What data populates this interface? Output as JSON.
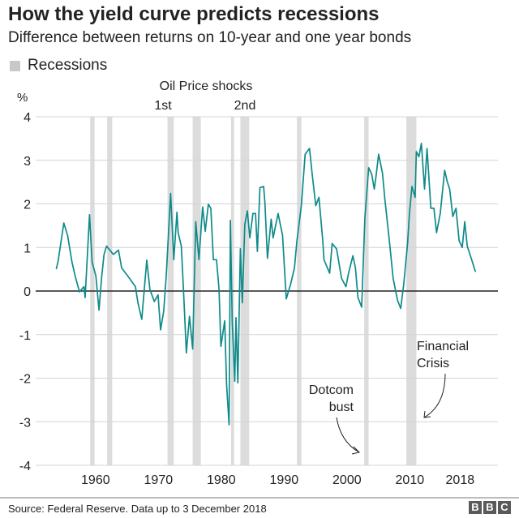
{
  "title": "How the yield curve predicts recessions",
  "subtitle": "Difference between returns on 10-year and one year bonds",
  "legend": {
    "label": "Recessions",
    "color": "#cccccc"
  },
  "source": "Source: Federal Reserve. Data up to 3 December 2018",
  "logo": [
    "B",
    "B",
    "C"
  ],
  "chart_data": {
    "type": "line",
    "title": "How the yield curve predicts recessions",
    "ylabel": "%",
    "ylim": [
      -4,
      4
    ],
    "yticks": [
      4,
      3,
      2,
      1,
      0,
      -1,
      -2,
      -3,
      -4
    ],
    "xticks": [
      1960,
      1970,
      1980,
      1990,
      2000,
      2010,
      2018
    ],
    "grid": "horizontal",
    "line_color": "#0f8a8a",
    "recession_color": "#dcdcdc",
    "recessions": [
      [
        1957.6,
        1958.3
      ],
      [
        1960.3,
        1961.1
      ],
      [
        1969.9,
        1970.9
      ],
      [
        1973.9,
        1975.2
      ],
      [
        1980.0,
        1980.5
      ],
      [
        1981.5,
        1982.9
      ],
      [
        1990.5,
        1991.2
      ],
      [
        2001.2,
        2001.9
      ],
      [
        2007.9,
        2009.5
      ]
    ],
    "annotations": [
      {
        "text": "Oil Price shocks",
        "sub": [
          "1st",
          "2nd"
        ]
      },
      {
        "text": "Dotcom",
        "text2": "bust"
      },
      {
        "text": "Financial",
        "text2": "Crisis"
      }
    ],
    "series": [
      {
        "x": [
          1952.2,
          1952.5,
          1953.4,
          1954.0,
          1954.7,
          1955.3,
          1955.9,
          1956.6,
          1956.8,
          1957.5,
          1957.9,
          1958.5,
          1959.0,
          1959.4,
          1959.8,
          1960.2,
          1961.3,
          1962.1,
          1962.6,
          1963.7,
          1964.8,
          1965.2,
          1965.8,
          1966.6,
          1967.1,
          1967.8,
          1968.4,
          1968.8,
          1969.3,
          1969.7,
          1970.4,
          1970.9,
          1971.4,
          1971.6,
          1972.1,
          1972.5,
          1972.9,
          1973.4,
          1973.9,
          1974.4,
          1974.9,
          1975.5,
          1975.9,
          1976.4,
          1976.8,
          1977.2,
          1977.7,
          1978.1,
          1978.4,
          1979.0,
          1979.3,
          1979.7,
          1979.9,
          1980.2,
          1980.6,
          1980.8,
          1981.1,
          1981.5,
          1981.8,
          1982.2,
          1982.6,
          1983.0,
          1983.5,
          1983.9,
          1984.2,
          1984.6,
          1985.2,
          1985.4,
          1985.8,
          1986.4,
          1986.7,
          1987.5,
          1988.2,
          1988.8,
          1989.5,
          1990.1,
          1990.5,
          1991.2,
          1991.8,
          1992.5,
          1992.9,
          1993.5,
          1994.0,
          1994.6,
          1994.8,
          1995.7,
          1996.1,
          1996.8,
          1997.6,
          1998.3,
          1998.7,
          1999.4,
          1999.8,
          2000.2,
          2000.8,
          2001.3,
          2001.9,
          2002.4,
          2002.8,
          2003.1,
          2003.5,
          2004.1,
          2004.5,
          2005.2,
          2005.8,
          2006.5,
          2007.0,
          2007.5,
          2008.1,
          2008.4,
          2008.8,
          2009.3,
          2009.5,
          2009.9,
          2010.3,
          2010.8,
          2011.2,
          2011.8,
          2012.3,
          2012.7,
          2013.3,
          2014.0,
          2014.4,
          2014.8,
          2015.3,
          2015.8,
          2016.3,
          2016.8,
          2017.2,
          2017.6,
          2018.3,
          2018.9
        ],
        "y": [
          0.5,
          0.69,
          1.56,
          1.28,
          0.66,
          0.29,
          -0.02,
          0.1,
          -0.15,
          1.75,
          0.66,
          0.35,
          -0.44,
          0.29,
          0.84,
          1.03,
          0.84,
          0.94,
          0.53,
          0.32,
          0.1,
          -0.27,
          -0.65,
          0.71,
          0.04,
          -0.24,
          -0.09,
          -0.89,
          -0.46,
          0.35,
          2.24,
          0.72,
          1.81,
          1.34,
          1.03,
          -0.15,
          -1.42,
          -0.58,
          -1.33,
          1.59,
          0.72,
          1.93,
          1.37,
          1.99,
          1.9,
          0.72,
          0.72,
          0.04,
          -1.27,
          -0.68,
          -2.14,
          -3.07,
          1.62,
          -0.71,
          -2.07,
          -0.61,
          -2.11,
          0.97,
          -0.27,
          1.53,
          1.84,
          1.22,
          1.78,
          1.78,
          0.91,
          2.37,
          2.4,
          2.02,
          0.75,
          1.65,
          1.22,
          1.78,
          1.28,
          -0.18,
          0.16,
          0.53,
          1.16,
          1.96,
          3.14,
          3.27,
          2.71,
          1.96,
          2.15,
          1.16,
          0.72,
          0.41,
          1.09,
          0.97,
          0.29,
          0.1,
          0.41,
          0.81,
          0.53,
          -0.15,
          -0.37,
          1.65,
          2.83,
          2.68,
          2.34,
          2.65,
          3.14,
          2.71,
          2.09,
          1.16,
          0.29,
          -0.21,
          -0.4,
          0.16,
          1.09,
          1.78,
          2.4,
          2.15,
          3.2,
          3.08,
          3.39,
          2.34,
          3.27,
          1.9,
          1.9,
          1.34,
          1.78,
          2.77,
          2.52,
          2.34,
          1.71,
          1.9,
          1.16,
          1.0,
          1.59,
          1.03,
          0.72,
          0.44
        ]
      }
    ]
  }
}
